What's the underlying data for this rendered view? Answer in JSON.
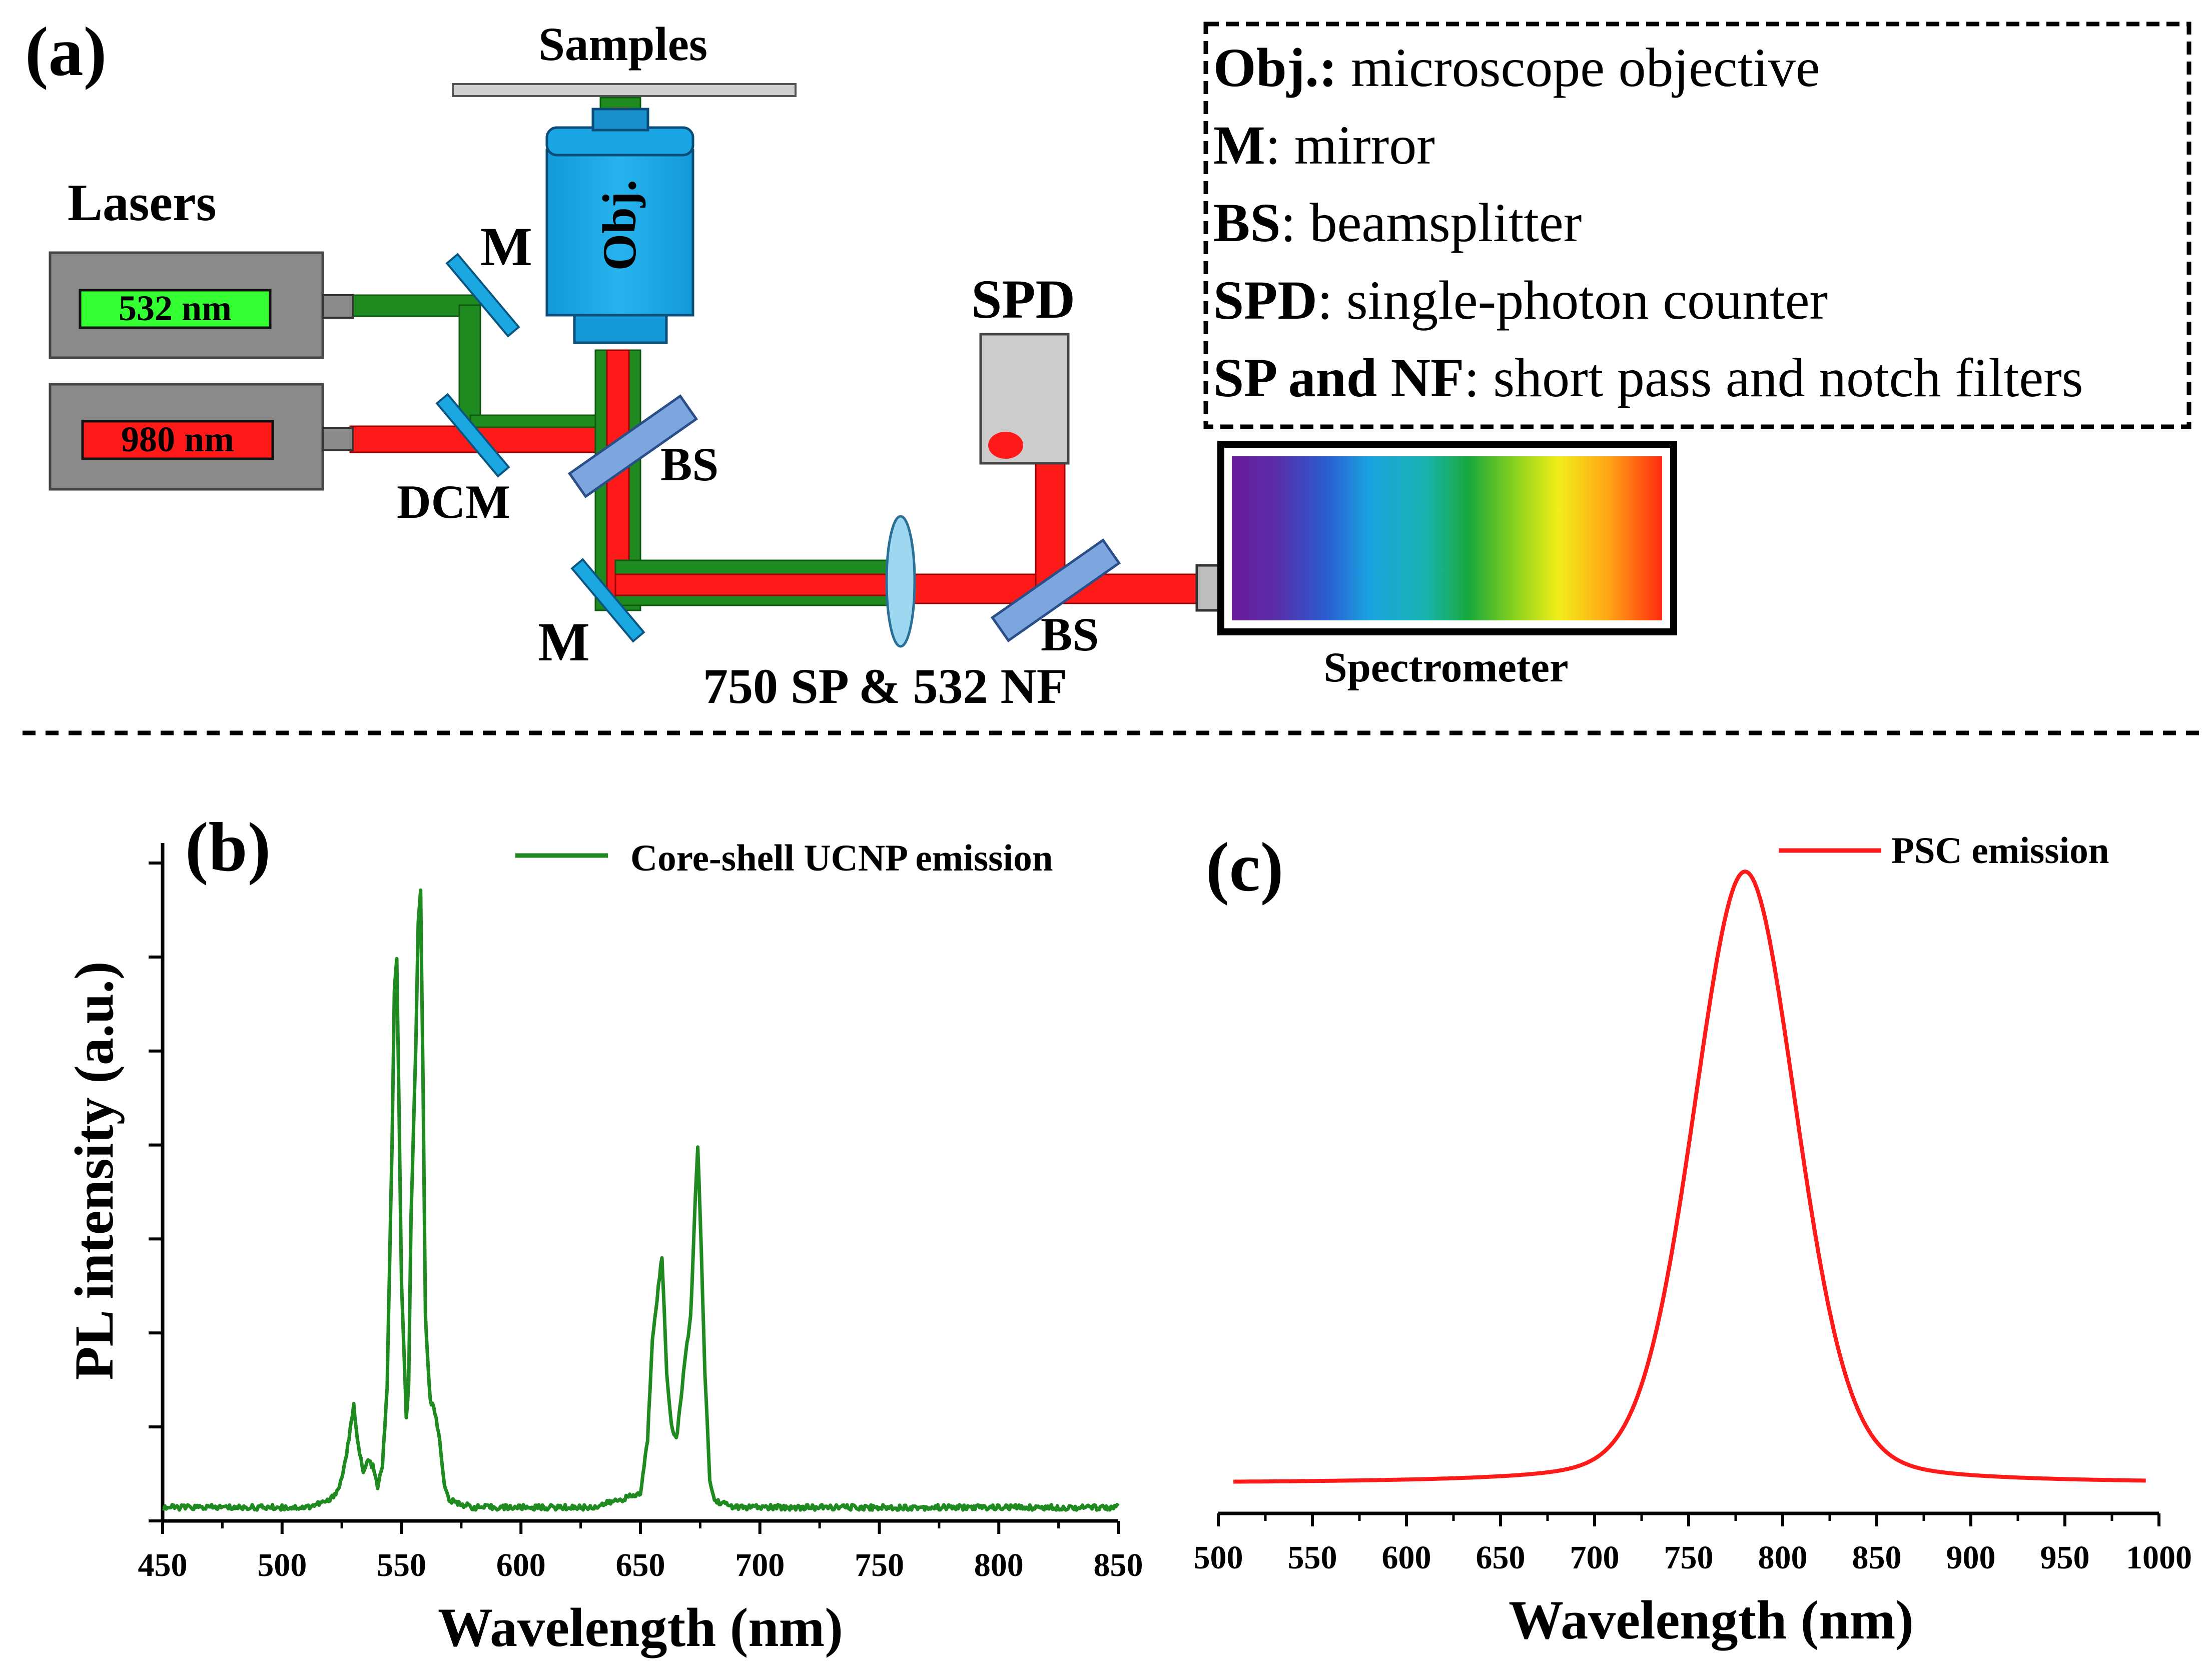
{
  "panel_labels": {
    "a": "(a)",
    "b": "(b)",
    "c": "(c)"
  },
  "setup": {
    "samples_label": "Samples",
    "lasers_label": "Lasers",
    "laser_green": "532 nm",
    "laser_red": "980 nm",
    "objective": "Obj.",
    "mirror_top": "M",
    "mirror_bottom": "M",
    "dcm": "DCM",
    "bs_1": "BS",
    "bs_2": "BS",
    "spd": "SPD",
    "filters": "750 SP & 532 NF",
    "spectrometer": "Spectrometer",
    "colors": {
      "green_beam": "#1f8a1f",
      "red_beam": "#ff1a1a",
      "optic_blue": "#1ba7e0",
      "laser_box": "#8a8a8a"
    }
  },
  "legend_box": {
    "items": [
      {
        "key": "Obj.:",
        "desc": " microscope objective"
      },
      {
        "key": "M",
        "desc": ": mirror"
      },
      {
        "key": "BS",
        "desc": ": beamsplitter"
      },
      {
        "key": "SPD",
        "desc": ": single-photon counter"
      },
      {
        "key": "SP and NF",
        "desc": ": short pass and notch filters"
      }
    ]
  },
  "chart_data": [
    {
      "id": "b",
      "type": "line",
      "title": "",
      "xlabel": "Wavelength (nm)",
      "ylabel": "PL intensity (a.u.)",
      "xlim": [
        450,
        850
      ],
      "ylim": [
        0,
        1
      ],
      "xticks": [
        450,
        500,
        550,
        600,
        650,
        700,
        750,
        800,
        850
      ],
      "yticks_shown": false,
      "color": "#1f8a1f",
      "series": [
        {
          "name": "Core-shell UCNP emission",
          "x": [
            450,
            480,
            510,
            520,
            524,
            526,
            528,
            530,
            532,
            534,
            536,
            538,
            540,
            542,
            544,
            546,
            547,
            548,
            549,
            550,
            552,
            553,
            554,
            556,
            557,
            558,
            559,
            560,
            562,
            564,
            566,
            568,
            570,
            580,
            600,
            630,
            650,
            653,
            655,
            657,
            659,
            661,
            663,
            665,
            667,
            669,
            671,
            673,
            674,
            675,
            677,
            679,
            681,
            690,
            720,
            760,
            800,
            850
          ],
          "values": [
            0.02,
            0.02,
            0.02,
            0.03,
            0.05,
            0.08,
            0.12,
            0.17,
            0.11,
            0.07,
            0.09,
            0.08,
            0.05,
            0.08,
            0.2,
            0.55,
            0.78,
            0.83,
            0.6,
            0.35,
            0.15,
            0.2,
            0.45,
            0.7,
            0.88,
            0.93,
            0.65,
            0.3,
            0.18,
            0.16,
            0.12,
            0.05,
            0.03,
            0.02,
            0.02,
            0.02,
            0.04,
            0.12,
            0.27,
            0.33,
            0.39,
            0.22,
            0.14,
            0.12,
            0.18,
            0.25,
            0.3,
            0.48,
            0.55,
            0.45,
            0.22,
            0.06,
            0.03,
            0.02,
            0.02,
            0.02,
            0.02,
            0.02
          ]
        }
      ],
      "legend_position": "top-right"
    },
    {
      "id": "c",
      "type": "line",
      "title": "",
      "xlabel": "Wavelength (nm)",
      "ylabel": "",
      "xlim": [
        500,
        1000
      ],
      "ylim": [
        0,
        1
      ],
      "xticks": [
        500,
        550,
        600,
        650,
        700,
        750,
        800,
        850,
        900,
        950,
        1000
      ],
      "yticks_shown": false,
      "color": "#ff1a1a",
      "series": [
        {
          "name": "PSC emission",
          "peak_nm": 780,
          "fwhm_nm": 65,
          "x_range": [
            508,
            993
          ],
          "baseline": 0.0,
          "peak": 0.93
        }
      ],
      "legend_position": "top-right"
    }
  ]
}
